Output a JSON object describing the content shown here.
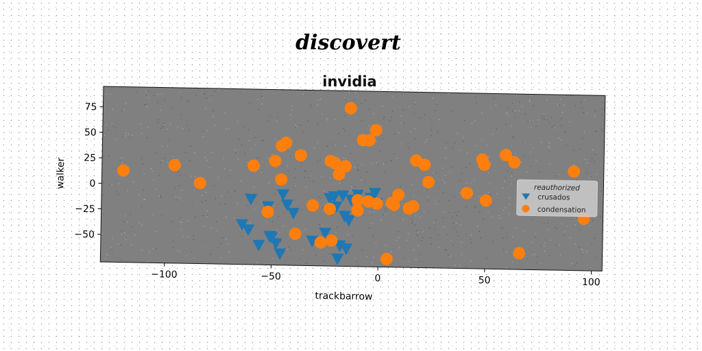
{
  "figure": {
    "suptitle": "discovert"
  },
  "chart_data": {
    "type": "scatter",
    "title": "invidia",
    "xlabel": "trackbarrow",
    "ylabel": "walker",
    "xlim": [
      -130,
      105
    ],
    "ylim": [
      -77,
      95
    ],
    "xticks": [
      -100,
      -50,
      0,
      50,
      100
    ],
    "yticks": [
      75,
      50,
      25,
      0,
      -25,
      -50
    ],
    "xtick_labels": [
      "−100",
      "−50",
      "0",
      "50",
      "100"
    ],
    "ytick_labels": [
      "75",
      "50",
      "25",
      "0",
      "−25",
      "−50"
    ],
    "grid": false,
    "legend": {
      "title": "reauthorized",
      "placement": "right"
    },
    "series": [
      {
        "name": "crusados",
        "marker": "triangle-down",
        "color": "#1f77b4",
        "x": [
          -60,
          -52,
          -45,
          -43,
          -40,
          -64,
          -61,
          -51,
          -50,
          -48,
          -56,
          -46,
          -23,
          -21,
          -17,
          -13,
          -10,
          -4,
          -2,
          -1,
          -16,
          -14,
          -22,
          -20,
          -31,
          -25,
          -18,
          -15,
          -19
        ],
        "y": [
          -13,
          -20,
          -8,
          -18,
          -26,
          -38,
          -43,
          -49,
          -50,
          -56,
          -58,
          -66,
          -11,
          -9,
          -8,
          -12,
          -7,
          -10,
          -5,
          -15,
          -28,
          -32,
          -22,
          -19,
          -53,
          -45,
          -57,
          -60,
          -70
        ]
      },
      {
        "name": "condensation",
        "marker": "circle",
        "color": "#ff7f0e",
        "x": [
          -120,
          -96,
          -84,
          -59,
          -52,
          -49,
          -46,
          -44,
          -37,
          -23,
          -21,
          -19,
          -16,
          -14,
          -8,
          -5,
          -2,
          -31,
          -46,
          -23,
          -39,
          -27,
          -22,
          -10,
          -5,
          -10,
          -1,
          6,
          7,
          9,
          14,
          16,
          17,
          21,
          23,
          41,
          48,
          49,
          50,
          59,
          63,
          66,
          91,
          96,
          4
        ],
        "y": [
          13,
          19,
          2,
          20,
          -25,
          25,
          40,
          43,
          31,
          26,
          24,
          13,
          21,
          78,
          47,
          47,
          57,
          -18,
          7,
          -21,
          -46,
          -54,
          -52,
          -22,
          -13,
          -12,
          -15,
          -14,
          -16,
          -6,
          -19,
          -17,
          28,
          24,
          7,
          -3,
          30,
          25,
          -10,
          35,
          28,
          -61,
          20,
          -26,
          -69
        ]
      }
    ]
  }
}
